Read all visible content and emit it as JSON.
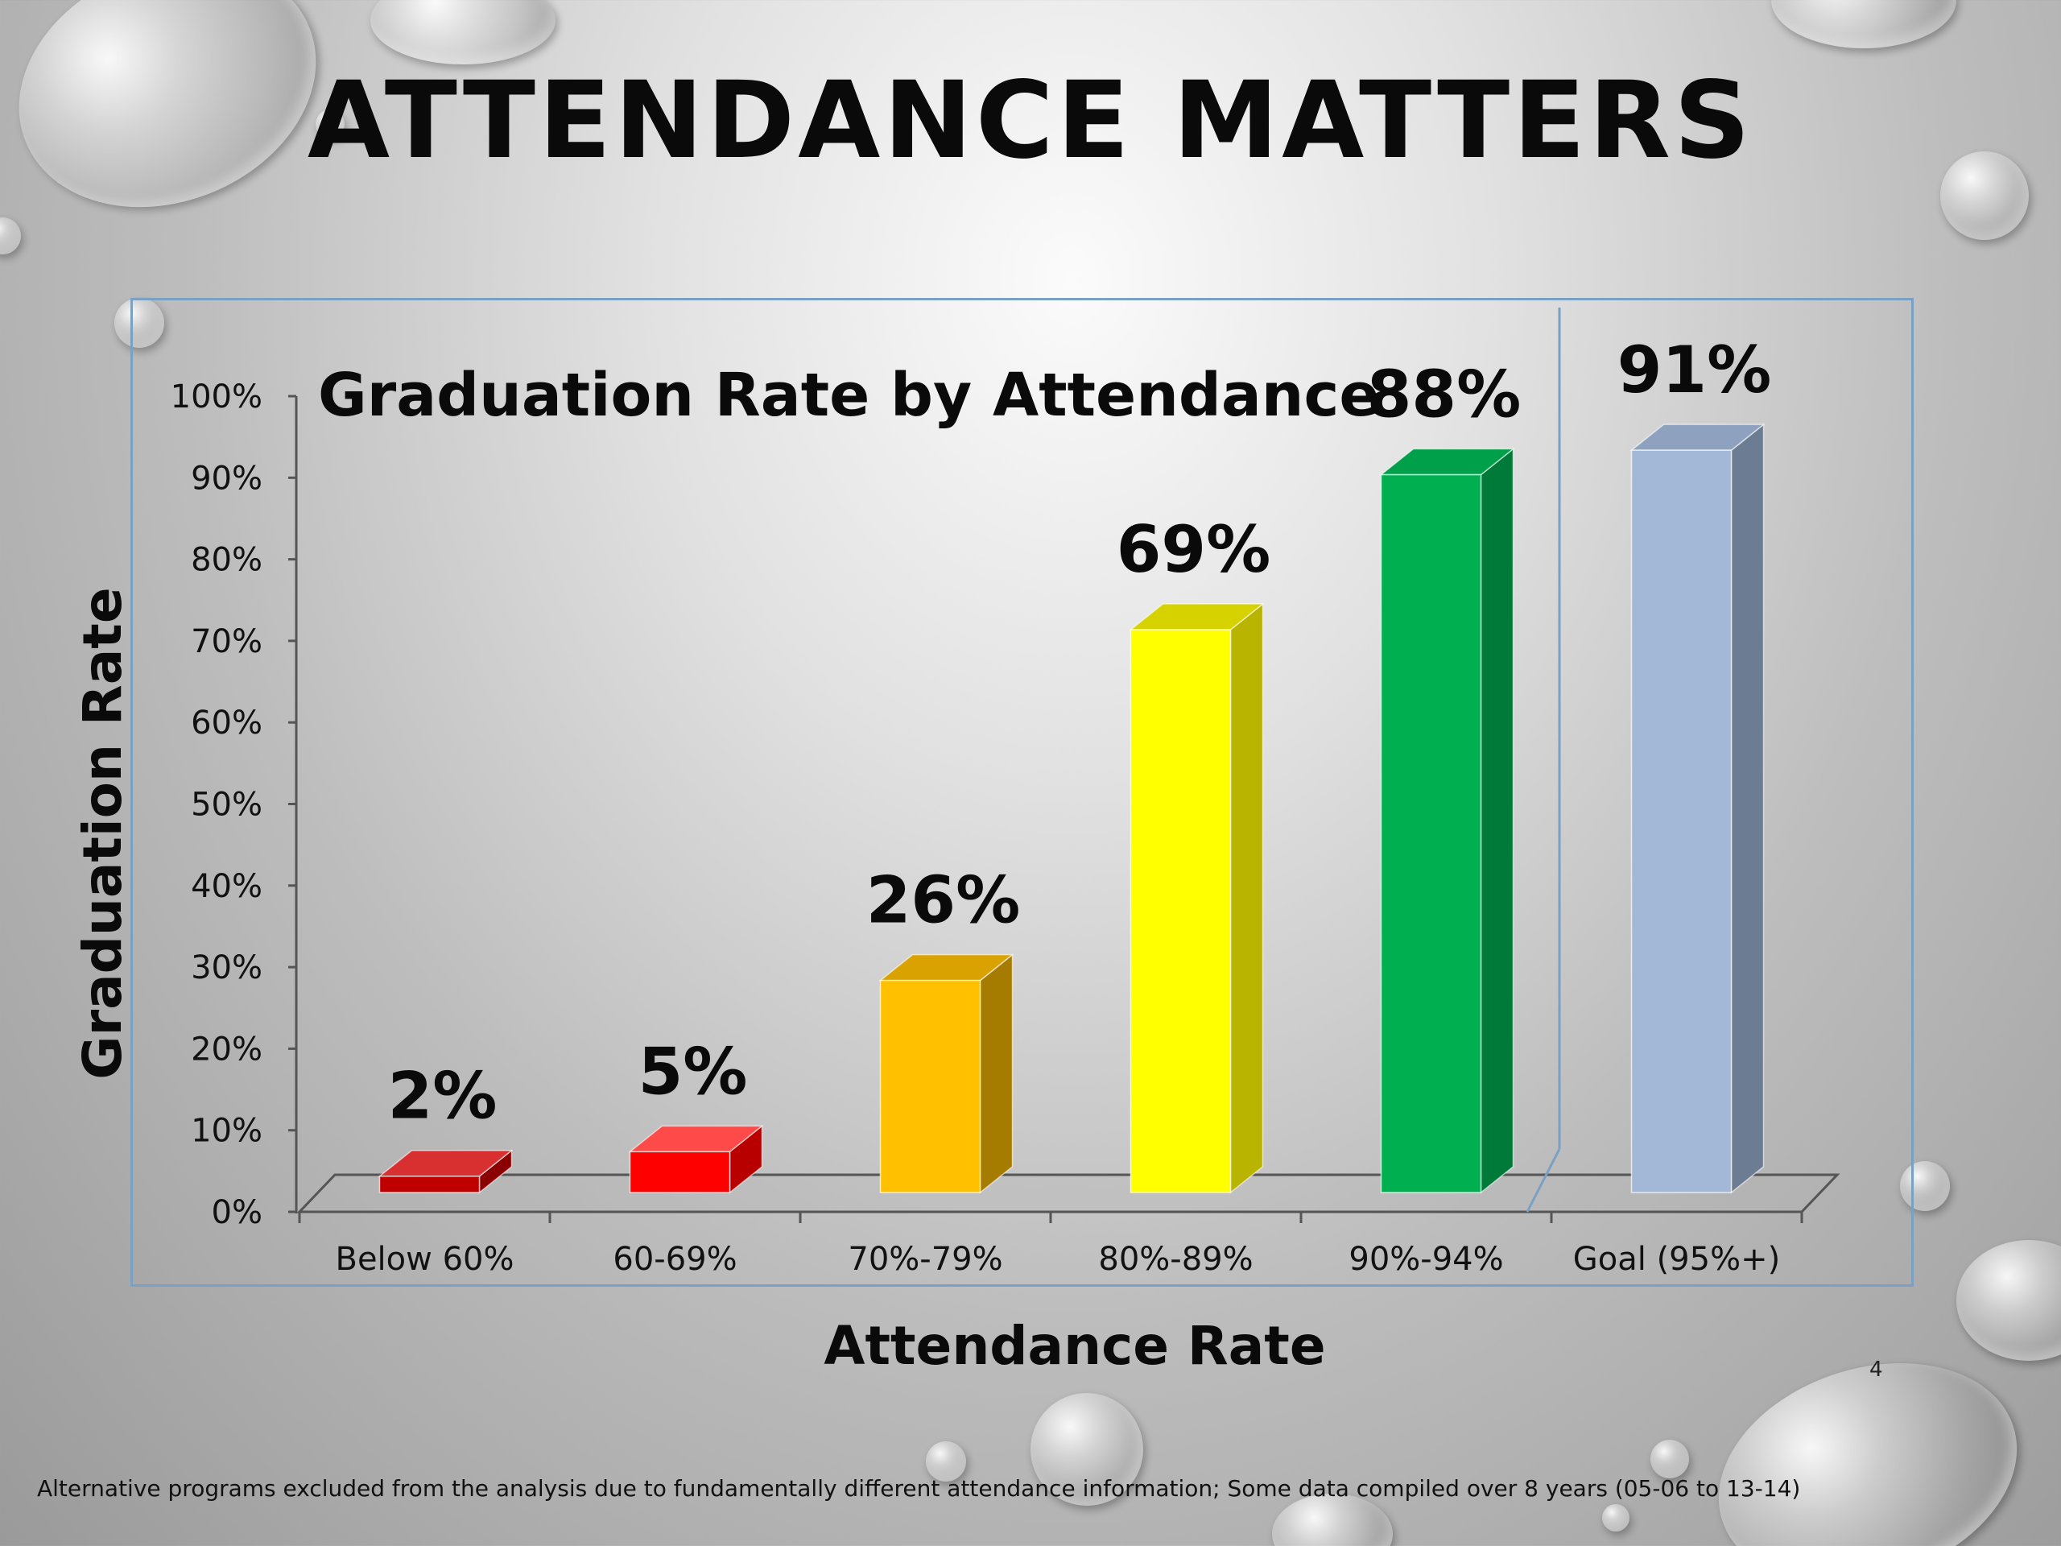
{
  "slide": {
    "title": "ATTENDANCE MATTERS",
    "footnote": "Alternative programs excluded from the analysis due to fundamentally different attendance information; Some data compiled over 8 years (05-06 to 13-14)",
    "page_number": "4"
  },
  "chart_data": {
    "type": "bar",
    "title": "Graduation Rate by Attendance",
    "xlabel": "Attendance Rate",
    "ylabel": "Graduation Rate",
    "categories": [
      "Below 60%",
      "60-69%",
      "70%-79%",
      "80%-89%",
      "90%-94%",
      "Goal (95%+)"
    ],
    "values": [
      2,
      5,
      26,
      69,
      88,
      91
    ],
    "data_labels": [
      "2%",
      "5%",
      "26%",
      "69%",
      "88%",
      "91%"
    ],
    "yticks": [
      "0%",
      "10%",
      "20%",
      "30%",
      "40%",
      "50%",
      "60%",
      "70%",
      "80%",
      "90%",
      "100%"
    ],
    "ylim": [
      0,
      100
    ],
    "grid": false,
    "legend": "none",
    "colors": [
      "#c00000",
      "#ff0000",
      "#ffc000",
      "#ffff00",
      "#00b050",
      "#a2b8d6"
    ],
    "side_colors": [
      "#8b0000",
      "#b80000",
      "#a67c00",
      "#b8b400",
      "#007a38",
      "#6b7c93"
    ],
    "top_colors": [
      "#d83030",
      "#ff4a4a",
      "#d9a200",
      "#d6d200",
      "#00a04a",
      "#8ea2bf"
    ],
    "axis_color": "#555555",
    "frame_color": "#7aa0c4"
  }
}
